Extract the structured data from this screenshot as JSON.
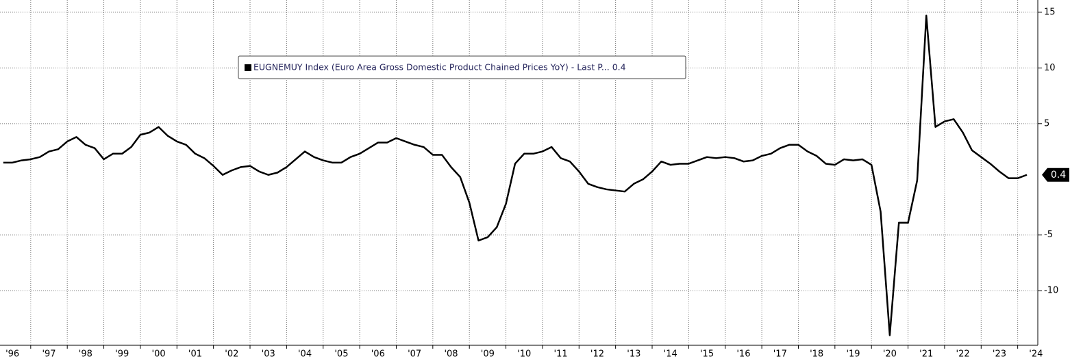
{
  "chart_data": {
    "type": "line",
    "x": [
      1996.25,
      1996.5,
      1996.75,
      1997,
      1997.25,
      1997.5,
      1997.75,
      1998,
      1998.25,
      1998.5,
      1998.75,
      1999,
      1999.25,
      1999.5,
      1999.75,
      2000,
      2000.25,
      2000.5,
      2000.75,
      2001,
      2001.25,
      2001.5,
      2001.75,
      2002,
      2002.25,
      2002.5,
      2002.75,
      2003,
      2003.25,
      2003.5,
      2003.75,
      2004,
      2004.25,
      2004.5,
      2004.75,
      2005,
      2005.25,
      2005.5,
      2005.75,
      2006,
      2006.25,
      2006.5,
      2006.75,
      2007,
      2007.25,
      2007.5,
      2007.75,
      2008,
      2008.25,
      2008.5,
      2008.75,
      2009,
      2009.25,
      2009.5,
      2009.75,
      2010,
      2010.25,
      2010.5,
      2010.75,
      2011,
      2011.25,
      2011.5,
      2011.75,
      2012,
      2012.25,
      2012.5,
      2012.75,
      2013,
      2013.25,
      2013.5,
      2013.75,
      2014,
      2014.25,
      2014.5,
      2014.75,
      2015,
      2015.25,
      2015.5,
      2015.75,
      2016,
      2016.25,
      2016.5,
      2016.75,
      2017,
      2017.25,
      2017.5,
      2017.75,
      2018,
      2018.25,
      2018.5,
      2018.75,
      2019,
      2019.25,
      2019.5,
      2019.75,
      2020,
      2020.25,
      2020.5,
      2020.75,
      2021,
      2021.25,
      2021.5,
      2021.75,
      2022,
      2022.25,
      2022.5,
      2022.75,
      2023,
      2023.25,
      2023.5,
      2023.75,
      2024,
      2024.25
    ],
    "series": [
      {
        "name": "EUGNEMUY Index (Euro Area Gross Domestic Product Chained  Prices YoY) - Last P... 0.4",
        "color": "#000000",
        "values": [
          1.5,
          1.5,
          1.7,
          1.8,
          2.0,
          2.5,
          2.7,
          3.4,
          3.8,
          3.1,
          2.8,
          1.8,
          2.3,
          2.3,
          2.9,
          4.0,
          4.2,
          4.7,
          3.9,
          3.4,
          3.1,
          2.3,
          1.9,
          1.2,
          0.4,
          0.8,
          1.1,
          1.2,
          0.7,
          0.4,
          0.6,
          1.1,
          1.8,
          2.5,
          2.0,
          1.7,
          1.5,
          1.5,
          2.0,
          2.3,
          2.8,
          3.3,
          3.3,
          3.7,
          3.4,
          3.1,
          2.9,
          2.2,
          2.2,
          1.1,
          0.2,
          -2.1,
          -5.5,
          -5.2,
          -4.3,
          -2.2,
          1.4,
          2.3,
          2.3,
          2.5,
          2.9,
          1.9,
          1.6,
          0.7,
          -0.4,
          -0.7,
          -0.9,
          -1.0,
          -1.1,
          -0.4,
          0.0,
          0.7,
          1.6,
          1.3,
          1.4,
          1.4,
          1.7,
          2.0,
          1.9,
          2.0,
          1.9,
          1.6,
          1.7,
          2.1,
          2.3,
          2.8,
          3.1,
          3.1,
          2.5,
          2.1,
          1.4,
          1.3,
          1.8,
          1.7,
          1.8,
          1.3,
          -2.9,
          -14.0,
          -3.9,
          -3.9,
          -0.1,
          14.7,
          4.7,
          5.2,
          5.4,
          4.2,
          2.6,
          2.0,
          1.4,
          0.7,
          0.1,
          0.1,
          0.4
        ]
      }
    ],
    "xlim": [
      1996.16,
      2024.55
    ],
    "xticks": [
      {
        "value": 1996,
        "label": "'96"
      },
      {
        "value": 1997,
        "label": "'97"
      },
      {
        "value": 1998,
        "label": "'98"
      },
      {
        "value": 1999,
        "label": "'99"
      },
      {
        "value": 2000,
        "label": "'00"
      },
      {
        "value": 2001,
        "label": "'01"
      },
      {
        "value": 2002,
        "label": "'02"
      },
      {
        "value": 2003,
        "label": "'03"
      },
      {
        "value": 2004,
        "label": "'04"
      },
      {
        "value": 2005,
        "label": "'05"
      },
      {
        "value": 2006,
        "label": "'06"
      },
      {
        "value": 2007,
        "label": "'07"
      },
      {
        "value": 2008,
        "label": "'08"
      },
      {
        "value": 2009,
        "label": "'09"
      },
      {
        "value": 2010,
        "label": "'10"
      },
      {
        "value": 2011,
        "label": "'11"
      },
      {
        "value": 2012,
        "label": "'12"
      },
      {
        "value": 2013,
        "label": "'13"
      },
      {
        "value": 2014,
        "label": "'14"
      },
      {
        "value": 2015,
        "label": "'15"
      },
      {
        "value": 2016,
        "label": "'16"
      },
      {
        "value": 2017,
        "label": "'17"
      },
      {
        "value": 2018,
        "label": "'18"
      },
      {
        "value": 2019,
        "label": "'19"
      },
      {
        "value": 2020,
        "label": "'20"
      },
      {
        "value": 2021,
        "label": "'21"
      },
      {
        "value": 2022,
        "label": "'22"
      },
      {
        "value": 2023,
        "label": "'23"
      },
      {
        "value": 2024,
        "label": "'24"
      }
    ],
    "ylim": [
      -14.9,
      16.1
    ],
    "yticks": [
      -10,
      -5,
      5,
      10,
      15
    ],
    "grid": true,
    "legend": "top-left"
  }
}
